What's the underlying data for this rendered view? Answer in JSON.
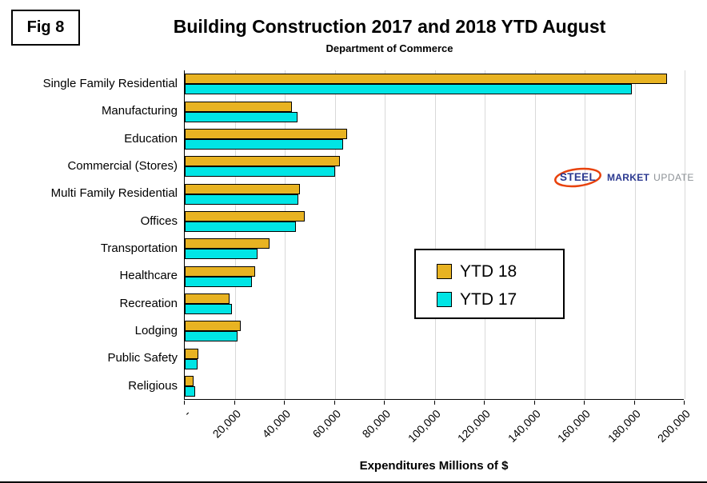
{
  "figure_label": "Fig 8",
  "title": "Building Construction 2017 and 2018 YTD August",
  "subtitle": "Department of Commerce",
  "xaxis_title": "Expenditures Millions of $",
  "logo": {
    "steel": "STEEL",
    "market": "MARKET",
    "update": "UPDATE",
    "steel_color": "#2b3990",
    "swoosh_color": "#e8420c",
    "update_color": "#8c9196"
  },
  "chart_data": {
    "type": "bar",
    "orientation": "horizontal",
    "title": "Building Construction 2017 and 2018 YTD August",
    "subtitle": "Department of Commerce",
    "xlabel": "Expenditures Millions of $",
    "ylabel": "",
    "grid": true,
    "legend_position": "center-right",
    "xlim": [
      0,
      200000
    ],
    "x_ticks": [
      "-",
      "20,000",
      "40,000",
      "60,000",
      "80,000",
      "100,000",
      "120,000",
      "140,000",
      "160,000",
      "180,000",
      "200,000"
    ],
    "categories": [
      "Single Family Residential",
      "Manufacturing",
      "Education",
      "Commercial (Stores)",
      "Multi Family Residential",
      "Offices",
      "Transportation",
      "Healthcare",
      "Recreation",
      "Lodging",
      "Public Safety",
      "Religious"
    ],
    "series": [
      {
        "name": "YTD 18",
        "color": "#e8b322",
        "values": [
          193000,
          43000,
          65000,
          62000,
          46000,
          48000,
          34000,
          28000,
          18000,
          22500,
          5500,
          3500
        ]
      },
      {
        "name": "YTD 17",
        "color": "#00e5e5",
        "values": [
          179000,
          45000,
          63500,
          60000,
          45500,
          44500,
          29000,
          27000,
          19000,
          21000,
          5000,
          4000
        ]
      }
    ]
  }
}
